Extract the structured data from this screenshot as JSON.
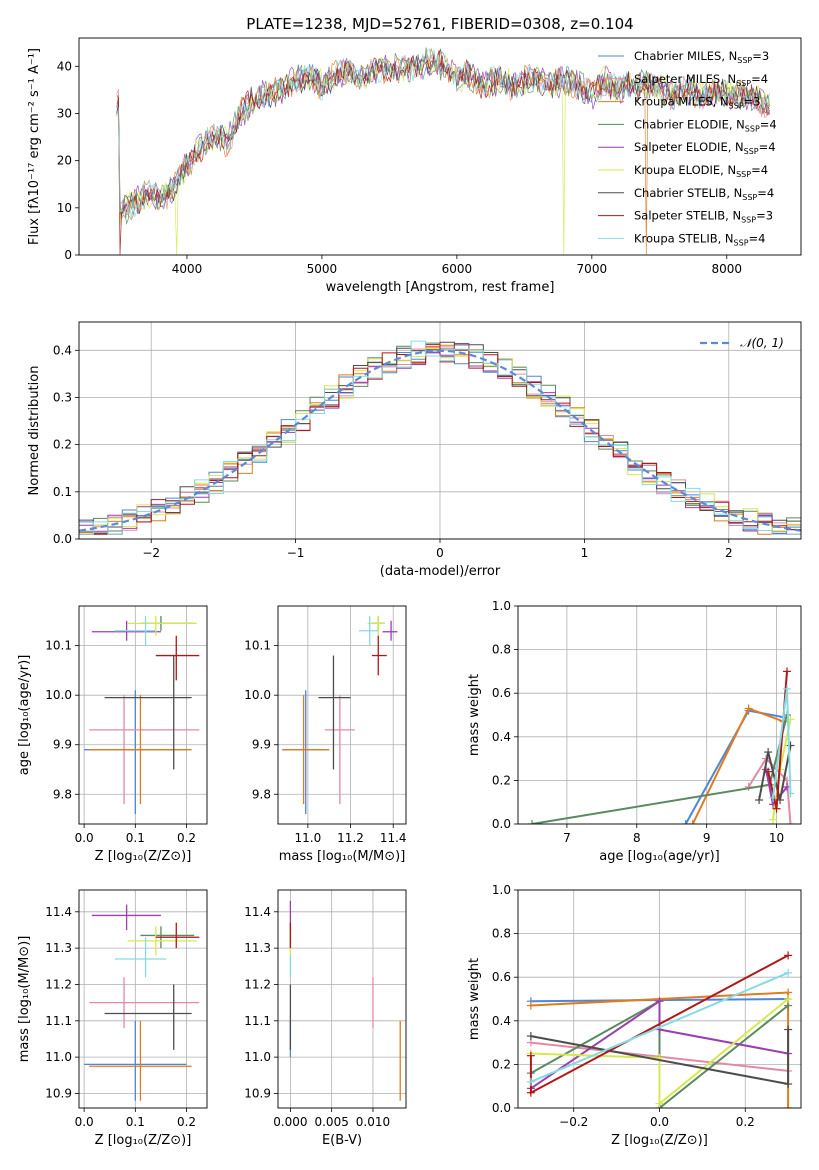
{
  "figure": {
    "title": "PLATE=1238, MJD=52761, FIBERID=0308, z=0.104"
  },
  "colors": {
    "Chabrier MILES": "#4e86d9",
    "Salpeter MILES": "#e38aa3",
    "Kroupa MILES": "#e07b20",
    "Chabrier ELODIE": "#5a8a5e",
    "Salpeter ELODIE": "#9a3fb0",
    "Kroupa ELODIE": "#d7e84f",
    "Chabrier STELIB": "#4d4d4d",
    "Salpeter STELIB": "#b01818",
    "Kroupa STELIB": "#86dbe3",
    "normal_curve": "#5b8bd4",
    "grid": "#b0b0b0"
  },
  "chart_data": [
    {
      "id": "spectrum",
      "type": "line",
      "title": "PLATE=1238, MJD=52761, FIBERID=0308, z=0.104",
      "xlabel": "wavelength [Angstrom, rest frame]",
      "ylabel": "Flux [fλ10⁻¹⁷ erg cm⁻² s⁻¹ A⁻¹]",
      "xlim": [
        3200,
        8550
      ],
      "ylim": [
        0,
        46
      ],
      "xticks": [
        4000,
        5000,
        6000,
        7000,
        8000
      ],
      "yticks": [
        0,
        10,
        20,
        30,
        40
      ],
      "grid": false,
      "legend_position": "top-right",
      "legend": [
        "Chabrier MILES, N_SSP=3",
        "Salpeter MILES, N_SSP=4",
        "Kroupa MILES, N_SSP=3",
        "Chabrier ELODIE, N_SSP=4",
        "Salpeter ELODIE, N_SSP=4",
        "Kroupa ELODIE, N_SSP=4",
        "Chabrier STELIB, N_SSP=4",
        "Salpeter STELIB, N_SSP=3",
        "Kroupa STELIB, N_SSP=4"
      ],
      "envelope": {
        "x": [
          3500,
          3600,
          3700,
          3800,
          3900,
          4000,
          4100,
          4200,
          4300,
          4400,
          4500,
          4600,
          4700,
          4800,
          4900,
          5000,
          5100,
          5200,
          5300,
          5400,
          5500,
          5600,
          5700,
          5800,
          5900,
          6000,
          6100,
          6200,
          6300,
          6400,
          6500,
          6600,
          6700,
          6800,
          6900,
          7000,
          7100,
          7200,
          7300,
          7400,
          7500,
          7600,
          7700,
          7800,
          7900,
          8000,
          8100,
          8200,
          8300
        ],
        "y": [
          9,
          11,
          13,
          12,
          14,
          19,
          23,
          25,
          24,
          30,
          33,
          34,
          35,
          37,
          38,
          36,
          38,
          39,
          37,
          39,
          40,
          39,
          40,
          41,
          40,
          38,
          38,
          36,
          37,
          36,
          37,
          37,
          36,
          37,
          36,
          34,
          37,
          35,
          36,
          36,
          35,
          34,
          35,
          34,
          34,
          34,
          34,
          33,
          32
        ]
      },
      "dips": [
        {
          "x": 3500,
          "series": "Salpeter STELIB"
        },
        {
          "x": 3920,
          "series": "Kroupa ELODIE"
        },
        {
          "x": 6790,
          "series": "Kroupa ELODIE"
        },
        {
          "x": 7405,
          "series": "Kroupa MILES"
        }
      ]
    },
    {
      "id": "residuals",
      "type": "line",
      "xlabel": "(data-model)/error",
      "ylabel": "Normed distribution",
      "xlim": [
        -2.5,
        2.5
      ],
      "ylim": [
        0,
        0.46
      ],
      "xticks": [
        -2,
        -1,
        0,
        1,
        2
      ],
      "yticks": [
        0.0,
        0.1,
        0.2,
        0.3,
        0.4
      ],
      "grid": true,
      "legend_position": "top-right",
      "legend": [
        "𝒩(0, 1)"
      ]
    },
    {
      "id": "age_vs_Z",
      "type": "scatter",
      "xlabel": "Z [log₁₀(Z/Z⊙)]",
      "ylabel": "age  [log₁₀(age/yr)]",
      "xlim": [
        -0.01,
        0.24
      ],
      "ylim": [
        9.74,
        10.18
      ],
      "xticks": [
        0.0,
        0.1,
        0.2
      ],
      "yticks": [
        9.8,
        9.9,
        10.0,
        10.1
      ],
      "grid": true,
      "points": [
        {
          "series": "Chabrier MILES",
          "x": 0.1,
          "y": 9.89,
          "xerr": [
            0.0,
            0.2
          ],
          "yerr": [
            9.76,
            10.01
          ]
        },
        {
          "series": "Salpeter MILES",
          "x": 0.078,
          "y": 9.93,
          "xerr": [
            0.01,
            0.225
          ],
          "yerr": [
            9.78,
            10.0
          ]
        },
        {
          "series": "Kroupa MILES",
          "x": 0.11,
          "y": 9.89,
          "xerr": [
            0.01,
            0.21
          ],
          "yerr": [
            9.78,
            10.0
          ]
        },
        {
          "series": "Chabrier ELODIE",
          "x": 0.15,
          "y": 10.145,
          "xerr": [
            0.11,
            0.215
          ],
          "yerr": [
            10.13,
            10.16
          ]
        },
        {
          "series": "Salpeter ELODIE",
          "x": 0.083,
          "y": 10.128,
          "xerr": [
            0.015,
            0.15
          ],
          "yerr": [
            10.11,
            10.15
          ]
        },
        {
          "series": "Kroupa ELODIE",
          "x": 0.14,
          "y": 10.145,
          "xerr": [
            0.085,
            0.22
          ],
          "yerr": [
            10.12,
            10.16
          ]
        },
        {
          "series": "Chabrier STELIB",
          "x": 0.175,
          "y": 9.995,
          "xerr": [
            0.04,
            0.21
          ],
          "yerr": [
            9.85,
            10.08
          ]
        },
        {
          "series": "Salpeter STELIB",
          "x": 0.18,
          "y": 10.08,
          "xerr": [
            0.14,
            0.225
          ],
          "yerr": [
            10.03,
            10.12
          ]
        },
        {
          "series": "Kroupa STELIB",
          "x": 0.12,
          "y": 10.13,
          "xerr": [
            0.06,
            0.14
          ],
          "yerr": [
            10.1,
            10.16
          ]
        }
      ]
    },
    {
      "id": "age_vs_mass",
      "type": "scatter",
      "xlabel": "mass [log₁₀(M/M⊙)]",
      "ylim": [
        9.74,
        10.18
      ],
      "xlim": [
        10.86,
        11.46
      ],
      "xticks": [
        11.0,
        11.2,
        11.4
      ],
      "yticks": [
        9.8,
        9.9,
        10.0,
        10.1
      ],
      "grid": true,
      "points": [
        {
          "series": "Chabrier MILES",
          "x": 10.99,
          "y": 9.89,
          "xerr": [
            10.88,
            11.1
          ],
          "yerr": [
            9.76,
            10.01
          ]
        },
        {
          "series": "Salpeter MILES",
          "x": 11.15,
          "y": 9.93,
          "xerr": [
            11.08,
            11.22
          ],
          "yerr": [
            9.78,
            10.0
          ]
        },
        {
          "series": "Kroupa MILES",
          "x": 10.98,
          "y": 9.89,
          "xerr": [
            10.88,
            11.1
          ],
          "yerr": [
            9.78,
            10.0
          ]
        },
        {
          "series": "Chabrier ELODIE",
          "x": 11.33,
          "y": 10.145,
          "xerr": [
            11.3,
            11.36
          ],
          "yerr": [
            10.13,
            10.16
          ]
        },
        {
          "series": "Salpeter ELODIE",
          "x": 11.39,
          "y": 10.128,
          "xerr": [
            11.35,
            11.42
          ],
          "yerr": [
            10.11,
            10.15
          ]
        },
        {
          "series": "Kroupa ELODIE",
          "x": 11.33,
          "y": 10.145,
          "xerr": [
            11.28,
            11.36
          ],
          "yerr": [
            10.12,
            10.16
          ]
        },
        {
          "series": "Chabrier STELIB",
          "x": 11.12,
          "y": 9.995,
          "xerr": [
            11.05,
            11.2
          ],
          "yerr": [
            9.85,
            10.08
          ]
        },
        {
          "series": "Salpeter STELIB",
          "x": 11.33,
          "y": 10.08,
          "xerr": [
            11.3,
            11.37
          ],
          "yerr": [
            10.04,
            10.12
          ]
        },
        {
          "series": "Kroupa STELIB",
          "x": 11.29,
          "y": 10.13,
          "xerr": [
            11.24,
            11.33
          ],
          "yerr": [
            10.1,
            10.16
          ]
        }
      ]
    },
    {
      "id": "mass_weight_vs_age",
      "type": "line",
      "xlabel": "age  [log₁₀(age/yr)]",
      "ylabel": "mass weight",
      "xlim": [
        6.3,
        10.35
      ],
      "ylim": [
        0.0,
        1.0
      ],
      "xticks": [
        7,
        8,
        9,
        10
      ],
      "yticks": [
        0.0,
        0.2,
        0.4,
        0.6,
        0.8,
        1.0
      ],
      "grid": true,
      "series": [
        {
          "name": "Chabrier MILES",
          "x": [
            8.7,
            9.6,
            10.1
          ],
          "y": [
            0.0,
            0.52,
            0.49
          ]
        },
        {
          "name": "Salpeter MILES",
          "x": [
            9.6,
            9.85,
            10.15,
            10.2
          ],
          "y": [
            0.17,
            0.3,
            0.2,
            0.0
          ]
        },
        {
          "name": "Kroupa MILES",
          "x": [
            8.8,
            9.6,
            10.1
          ],
          "y": [
            0.0,
            0.53,
            0.47
          ]
        },
        {
          "name": "Chabrier ELODIE",
          "x": [
            6.5,
            9.9,
            10.15
          ],
          "y": [
            0.0,
            0.18,
            0.5
          ]
        },
        {
          "name": "Salpeter ELODIE",
          "x": [
            9.85,
            9.95,
            10.15
          ],
          "y": [
            0.25,
            0.09,
            0.17
          ]
        },
        {
          "name": "Kroupa ELODIE",
          "x": [
            9.95,
            10.05,
            10.2
          ],
          "y": [
            0.02,
            0.25,
            0.48
          ]
        },
        {
          "name": "Chabrier STELIB",
          "x": [
            9.75,
            9.88,
            10.05,
            10.2
          ],
          "y": [
            0.11,
            0.33,
            0.11,
            0.36
          ]
        },
        {
          "name": "Salpeter STELIB",
          "x": [
            9.88,
            10.0,
            10.15
          ],
          "y": [
            0.24,
            0.07,
            0.7
          ]
        },
        {
          "name": "Kroupa STELIB",
          "x": [
            9.95,
            10.15,
            10.2
          ],
          "y": [
            0.12,
            0.62,
            0.14
          ]
        }
      ]
    },
    {
      "id": "mass_vs_Z",
      "type": "scatter",
      "xlabel": "Z [log₁₀(Z/Z⊙)]",
      "ylabel": "mass [log₁₀(M/M⊙)]",
      "xlim": [
        -0.01,
        0.24
      ],
      "ylim": [
        10.86,
        11.46
      ],
      "xticks": [
        0.0,
        0.1,
        0.2
      ],
      "yticks": [
        10.9,
        11.0,
        11.1,
        11.2,
        11.3,
        11.4
      ],
      "grid": true,
      "points": [
        {
          "series": "Chabrier MILES",
          "x": 0.1,
          "y": 10.98,
          "xerr": [
            0.0,
            0.2
          ],
          "yerr": [
            10.88,
            11.1
          ]
        },
        {
          "series": "Salpeter MILES",
          "x": 0.078,
          "y": 11.15,
          "xerr": [
            0.01,
            0.225
          ],
          "yerr": [
            11.08,
            11.22
          ]
        },
        {
          "series": "Kroupa MILES",
          "x": 0.11,
          "y": 10.975,
          "xerr": [
            0.01,
            0.21
          ],
          "yerr": [
            10.88,
            11.1
          ]
        },
        {
          "series": "Chabrier ELODIE",
          "x": 0.15,
          "y": 11.335,
          "xerr": [
            0.11,
            0.215
          ],
          "yerr": [
            11.3,
            11.36
          ]
        },
        {
          "series": "Salpeter ELODIE",
          "x": 0.083,
          "y": 11.39,
          "xerr": [
            0.015,
            0.15
          ],
          "yerr": [
            11.35,
            11.42
          ]
        },
        {
          "series": "Kroupa ELODIE",
          "x": 0.14,
          "y": 11.32,
          "xerr": [
            0.085,
            0.22
          ],
          "yerr": [
            11.28,
            11.36
          ]
        },
        {
          "series": "Chabrier STELIB",
          "x": 0.175,
          "y": 11.12,
          "xerr": [
            0.04,
            0.21
          ],
          "yerr": [
            11.02,
            11.2
          ]
        },
        {
          "series": "Salpeter STELIB",
          "x": 0.18,
          "y": 11.33,
          "xerr": [
            0.14,
            0.225
          ],
          "yerr": [
            11.3,
            11.37
          ]
        },
        {
          "series": "Kroupa STELIB",
          "x": 0.12,
          "y": 11.27,
          "xerr": [
            0.06,
            0.16
          ],
          "yerr": [
            11.22,
            11.33
          ]
        }
      ]
    },
    {
      "id": "mass_vs_ebv",
      "type": "scatter",
      "xlabel": "E(B-V)",
      "xlim": [
        -0.0015,
        0.014
      ],
      "ylim": [
        10.86,
        11.46
      ],
      "xticks": [
        0.0,
        0.005,
        0.01
      ],
      "xticklabels": [
        "0.000",
        "0.005",
        "0.010"
      ],
      "yticks": [
        10.9,
        11.0,
        11.1,
        11.2,
        11.3,
        11.4
      ],
      "grid": true,
      "points": [
        {
          "series": "Chabrier MILES",
          "x": 0.0,
          "y": 11.05,
          "yerr": [
            11.0,
            11.1
          ]
        },
        {
          "series": "Salpeter MILES",
          "x": 0.01,
          "y": 11.15,
          "yerr": [
            11.08,
            11.22
          ]
        },
        {
          "series": "Kroupa MILES",
          "x": 0.0133,
          "y": 10.98,
          "yerr": [
            10.88,
            11.1
          ]
        },
        {
          "series": "Chabrier ELODIE",
          "x": 0.0,
          "y": 11.33,
          "yerr": [
            11.3,
            11.36
          ]
        },
        {
          "series": "Salpeter ELODIE",
          "x": 0.0,
          "y": 11.39,
          "yerr": [
            11.35,
            11.43
          ]
        },
        {
          "series": "Kroupa ELODIE",
          "x": 0.0,
          "y": 11.32,
          "yerr": [
            11.28,
            11.36
          ]
        },
        {
          "series": "Chabrier STELIB",
          "x": 0.0,
          "y": 11.12,
          "yerr": [
            11.02,
            11.2
          ]
        },
        {
          "series": "Salpeter STELIB",
          "x": 0.0,
          "y": 11.33,
          "yerr": [
            11.3,
            11.37
          ]
        },
        {
          "series": "Kroupa STELIB",
          "x": 0.0,
          "y": 11.25,
          "yerr": [
            11.22,
            11.28
          ]
        }
      ]
    },
    {
      "id": "mass_weight_vs_Z",
      "type": "line",
      "xlabel": "Z [log₁₀(Z/Z⊙)]",
      "ylabel": "mass weight",
      "xlim": [
        -0.33,
        0.33
      ],
      "ylim": [
        0.0,
        1.0
      ],
      "xticks": [
        -0.2,
        0.0,
        0.2
      ],
      "xticklabels": [
        "−0.2",
        "0.0",
        "0.2"
      ],
      "yticks": [
        0.0,
        0.2,
        0.4,
        0.6,
        0.8,
        1.0
      ],
      "grid": true,
      "series": [
        {
          "name": "Chabrier MILES",
          "x": [
            -0.3,
            0.3
          ],
          "y": [
            0.49,
            0.5
          ]
        },
        {
          "name": "Salpeter MILES",
          "x": [
            -0.3,
            0.3
          ],
          "y": [
            0.3,
            0.17
          ]
        },
        {
          "name": "Kroupa MILES",
          "x": [
            -0.3,
            0.3,
            0.3
          ],
          "y": [
            0.47,
            0.53,
            0.0
          ]
        },
        {
          "name": "Chabrier ELODIE",
          "x": [
            -0.3,
            0.0,
            0.0,
            0.3
          ],
          "y": [
            0.16,
            0.49,
            0.0,
            0.47
          ]
        },
        {
          "name": "Salpeter ELODIE",
          "x": [
            -0.3,
            0.0,
            0.0,
            0.3
          ],
          "y": [
            0.09,
            0.49,
            0.36,
            0.25
          ]
        },
        {
          "name": "Kroupa ELODIE",
          "x": [
            -0.3,
            0.0,
            0.0,
            0.3
          ],
          "y": [
            0.25,
            0.23,
            0.02,
            0.5
          ]
        },
        {
          "name": "Chabrier STELIB",
          "x": [
            -0.3,
            0.3,
            0.3
          ],
          "y": [
            0.33,
            0.11,
            0.36
          ]
        },
        {
          "name": "Salpeter STELIB",
          "x": [
            -0.3,
            -0.3,
            0.3
          ],
          "y": [
            0.24,
            0.07,
            0.7
          ]
        },
        {
          "name": "Kroupa STELIB",
          "x": [
            -0.3,
            0.3
          ],
          "y": [
            0.12,
            0.62
          ]
        }
      ]
    }
  ]
}
